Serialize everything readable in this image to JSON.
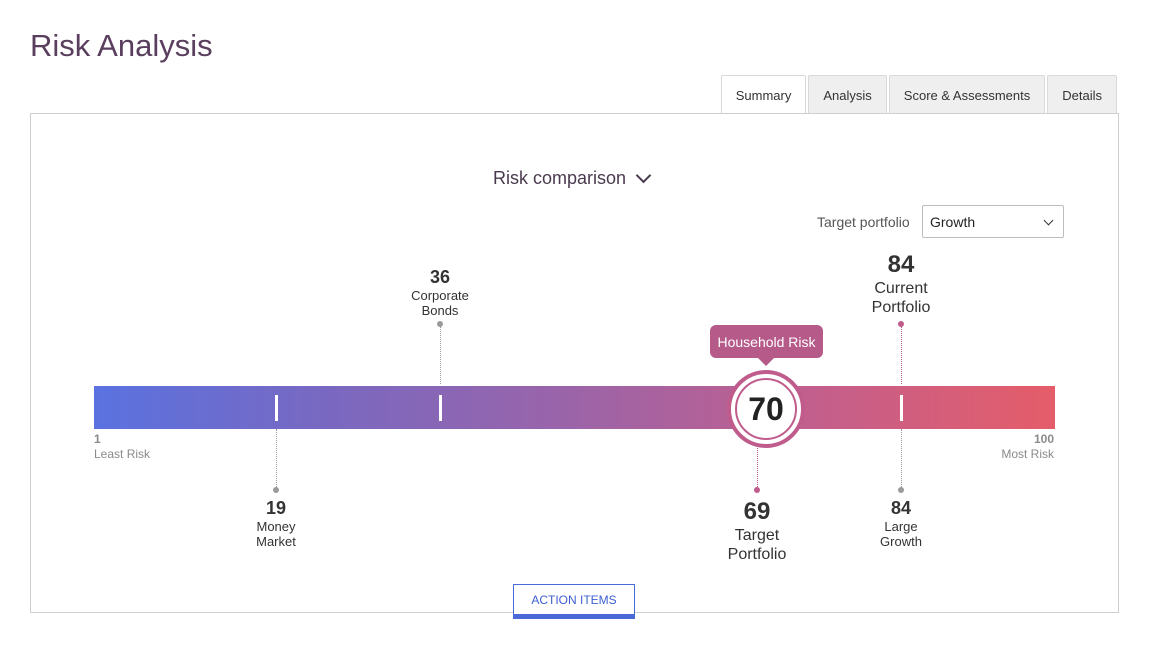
{
  "page": {
    "title": "Risk Analysis"
  },
  "tabs": [
    {
      "label": "Summary",
      "active": true
    },
    {
      "label": "Analysis",
      "active": false
    },
    {
      "label": "Score & Assessments",
      "active": false
    },
    {
      "label": "Details",
      "active": false
    }
  ],
  "comparison": {
    "label": "Risk comparison",
    "icon": "chevron-down-icon"
  },
  "target": {
    "label": "Target portfolio",
    "selected": "Growth"
  },
  "scale": {
    "min": {
      "value": "1",
      "label": "Least Risk"
    },
    "max": {
      "value": "100",
      "label": "Most Risk"
    },
    "gradient_start": "#5a72e0",
    "gradient_end": "#e55d69"
  },
  "markers": {
    "money_market": {
      "value": "19",
      "name_line1": "Money",
      "name_line2": "Market"
    },
    "corporate_bonds": {
      "value": "36",
      "name_line1": "Corporate",
      "name_line2": "Bonds"
    },
    "target_portfolio": {
      "value": "69",
      "name_line1": "Target",
      "name_line2": "Portfolio"
    },
    "current_portfolio": {
      "value": "84",
      "name_line1": "Current",
      "name_line2": "Portfolio"
    },
    "large_growth": {
      "value": "84",
      "name_line1": "Large",
      "name_line2": "Growth"
    }
  },
  "household": {
    "tag": "Household Risk",
    "value": "70",
    "accent": "#b65a8a"
  },
  "actions": {
    "action_items_label": "ACTION ITEMS"
  }
}
